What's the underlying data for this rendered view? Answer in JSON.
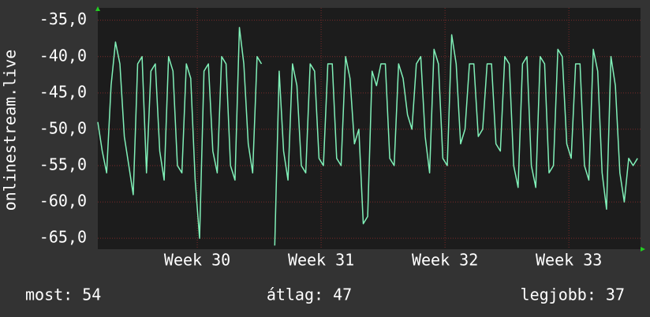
{
  "chart_data": {
    "type": "line",
    "y_label": "onlinestream.live",
    "x": [
      0,
      0.25,
      0.5,
      0.75,
      1,
      1.25,
      1.5,
      1.75,
      2,
      2.25,
      2.5,
      2.75,
      3,
      3.25,
      3.5,
      3.75,
      4,
      4.25,
      4.5,
      4.75,
      5,
      5.25,
      5.5,
      5.75,
      6,
      6.25,
      6.5,
      6.75,
      7,
      7.25,
      7.5,
      7.75,
      8,
      8.25,
      8.5,
      8.75,
      9,
      9.25,
      9.5,
      9.75,
      10,
      10.25,
      10.5,
      10.75,
      11,
      11.25,
      11.5,
      11.75,
      12,
      12.25,
      12.5,
      12.75,
      13,
      13.25,
      13.5,
      13.75,
      14,
      14.25,
      14.5,
      14.75,
      15,
      15.25,
      15.5,
      15.75,
      16,
      16.25,
      16.5,
      16.75,
      17,
      17.25,
      17.5,
      17.75,
      18,
      18.25,
      18.5,
      18.75,
      19,
      19.25,
      19.5,
      19.75,
      20,
      20.25,
      20.5,
      20.75,
      21,
      21.25,
      21.5,
      21.75,
      22,
      22.25,
      22.5,
      22.75,
      23,
      23.25,
      23.5,
      23.75,
      24,
      24.25,
      24.5,
      24.75,
      25,
      25.25,
      25.5,
      25.75,
      26,
      26.25,
      26.5,
      26.75,
      27,
      27.25,
      27.5,
      27.75,
      28,
      28.25,
      28.5,
      28.75,
      29,
      29.25,
      29.5,
      29.75,
      30,
      30.25,
      30.5
    ],
    "series": [
      {
        "name": "onlinestream.live",
        "color": "#80f0b8",
        "values": [
          -49,
          -53,
          -56,
          -44,
          -38,
          -41,
          -51,
          -55,
          -59,
          -41,
          -40,
          -56,
          -42,
          -41,
          -53,
          -57,
          -40,
          -42,
          -55,
          -56,
          -41,
          -43,
          -57,
          -65,
          -42,
          -41,
          -53,
          -56,
          -40,
          -41,
          -55,
          -57,
          -36,
          -41,
          -52,
          -56,
          -40,
          -41,
          null,
          null,
          -66,
          -42,
          -53,
          -57,
          -41,
          -44,
          -55,
          -56,
          -41,
          -42,
          -54,
          -55,
          -41,
          -41,
          -54,
          -55,
          -40,
          -43,
          -52,
          -50,
          -63,
          -62,
          -42,
          -44,
          -41,
          -41,
          -54,
          -55,
          -41,
          -43,
          -48,
          -50,
          -41,
          -40,
          -51,
          -56,
          -39,
          -41,
          -54,
          -55,
          -37,
          -41,
          -52,
          -50,
          -41,
          -41,
          -51,
          -50,
          -41,
          -41,
          -52,
          -53,
          -40,
          -41,
          -55,
          -58,
          -41,
          -40,
          -55,
          -58,
          -40,
          -41,
          -56,
          -55,
          -39,
          -40,
          -52,
          -54,
          -41,
          -41,
          -55,
          -57,
          -39,
          -42,
          -56,
          -61,
          -40,
          -44,
          -56,
          -60,
          -54,
          -55,
          -54
        ]
      }
    ],
    "xlim": [
      0,
      30.67
    ],
    "xticks": [
      {
        "value": 5.62,
        "label": "Week 30"
      },
      {
        "value": 12.62,
        "label": "Week 31"
      },
      {
        "value": 19.62,
        "label": "Week 32"
      },
      {
        "value": 26.62,
        "label": "Week 33"
      }
    ],
    "ylim": [
      -66.5,
      -33.3
    ],
    "yticks": [
      {
        "value": -35,
        "label": "-35,0"
      },
      {
        "value": -40,
        "label": "-40,0"
      },
      {
        "value": -45,
        "label": "-45,0"
      },
      {
        "value": -50,
        "label": "-50,0"
      },
      {
        "value": -55,
        "label": "-55,0"
      },
      {
        "value": -60,
        "label": "-60,0"
      },
      {
        "value": -65,
        "label": "-65,0"
      }
    ],
    "grid": true,
    "stats": [
      "most: 54",
      "átlag: 47",
      "legjobb: 37"
    ]
  }
}
